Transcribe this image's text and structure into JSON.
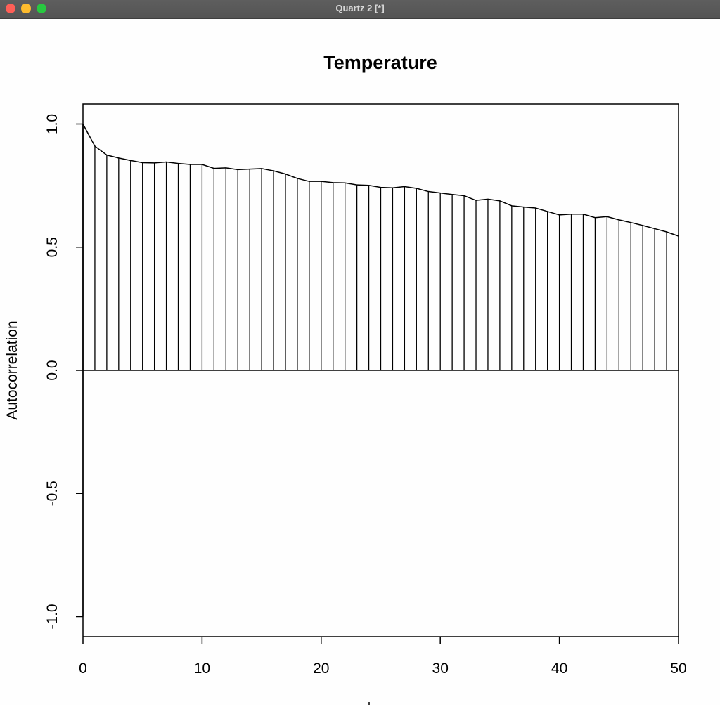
{
  "window": {
    "title": "Quartz 2 [*]"
  },
  "chart_data": {
    "type": "bar",
    "title": "Temperature",
    "xlabel": "",
    "ylabel": "Autocorrelation",
    "xlim": [
      0,
      50
    ],
    "ylim": [
      -1.0,
      1.0
    ],
    "x_ticks": [
      "0",
      "10",
      "20",
      "30",
      "40",
      "50"
    ],
    "y_ticks": [
      "-1.0",
      "-0.5",
      "0.0",
      "0.5",
      "1.0"
    ],
    "grid": false,
    "series": [
      {
        "lags": [
          0,
          1,
          2,
          3,
          4,
          5,
          6,
          7,
          8,
          9,
          10,
          11,
          12,
          13,
          14,
          15,
          16,
          17,
          18,
          19,
          20,
          21,
          22,
          23,
          24,
          25,
          26,
          27,
          28,
          29,
          30,
          31,
          32,
          33,
          34,
          35,
          36,
          37,
          38,
          39,
          40,
          41,
          42,
          43,
          44,
          45,
          46,
          47,
          48,
          49,
          50
        ],
        "values": [
          1.0,
          0.91,
          0.874,
          0.862,
          0.852,
          0.843,
          0.842,
          0.846,
          0.84,
          0.836,
          0.836,
          0.82,
          0.822,
          0.815,
          0.817,
          0.819,
          0.81,
          0.797,
          0.779,
          0.767,
          0.767,
          0.762,
          0.761,
          0.753,
          0.751,
          0.743,
          0.741,
          0.746,
          0.739,
          0.726,
          0.72,
          0.714,
          0.709,
          0.69,
          0.695,
          0.688,
          0.668,
          0.663,
          0.659,
          0.645,
          0.631,
          0.634,
          0.634,
          0.62,
          0.624,
          0.611,
          0.6,
          0.588,
          0.575,
          0.562,
          0.545
        ]
      }
    ]
  }
}
